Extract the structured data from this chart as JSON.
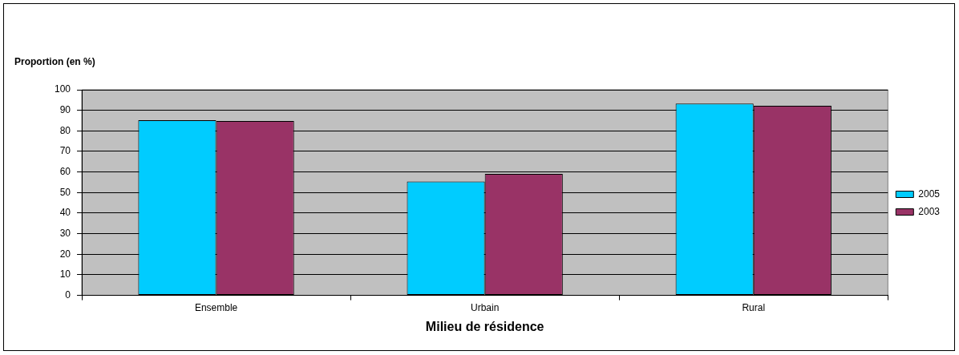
{
  "chart_data": {
    "type": "bar",
    "xlabel": "Milieu de résidence",
    "ylabel": "Proportion (en %)",
    "categories": [
      "Ensemble",
      "Urbain",
      "Rural"
    ],
    "series": [
      {
        "name": "2005",
        "color": "#00ccff",
        "values": [
          85.2,
          55.4,
          93.3
        ]
      },
      {
        "name": "2003",
        "color": "#993366",
        "values": [
          84.8,
          59.1,
          92.2
        ]
      }
    ],
    "ylim": [
      0,
      100
    ],
    "yticks": [
      0,
      10,
      20,
      30,
      40,
      50,
      60,
      70,
      80,
      90,
      100
    ],
    "grid": "y",
    "legend": "right"
  }
}
